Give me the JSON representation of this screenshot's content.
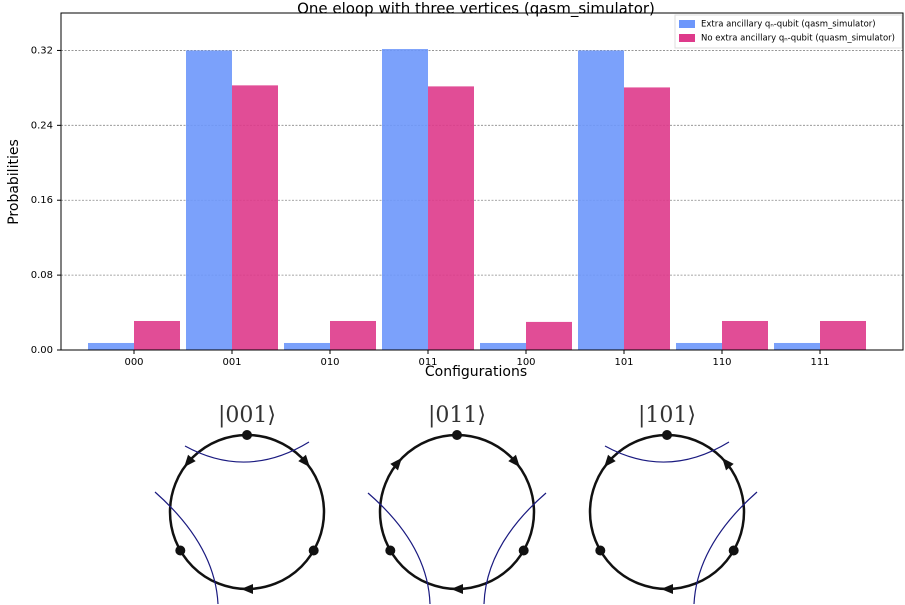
{
  "chart_data": {
    "type": "bar",
    "title": "One eloop with three vertices (qasm_simulator)",
    "x_label": "Configurations",
    "y_label": "Probabilities",
    "categories": [
      "000",
      "001",
      "010",
      "011",
      "100",
      "101",
      "110",
      "111"
    ],
    "series": [
      {
        "name": "Extra ancillary qₙ-qubit (qasm_simulator)",
        "color": "#6d97fb",
        "values": [
          0.0075,
          0.32,
          0.0075,
          0.3215,
          0.0075,
          0.32,
          0.0075,
          0.0075
        ]
      },
      {
        "name": "No extra ancillary qₙ-qubit (quasm_simulator)",
        "color": "#de3a8b",
        "values": [
          0.031,
          0.2827,
          0.031,
          0.2816,
          0.03,
          0.2805,
          0.031,
          0.031
        ]
      }
    ],
    "ylim": [
      0,
      0.36
    ],
    "yticks": [
      {
        "value": 0,
        "label": "0.00"
      },
      {
        "value": 0.08,
        "label": "0.08"
      },
      {
        "value": 0.16,
        "label": "0.16"
      },
      {
        "value": 0.24,
        "label": "0.24"
      },
      {
        "value": 0.32,
        "label": "0.32"
      }
    ],
    "grid": true,
    "legend": "upper right"
  },
  "diagram_labels": [
    "|001⟩",
    "|011⟩",
    "|101⟩"
  ]
}
